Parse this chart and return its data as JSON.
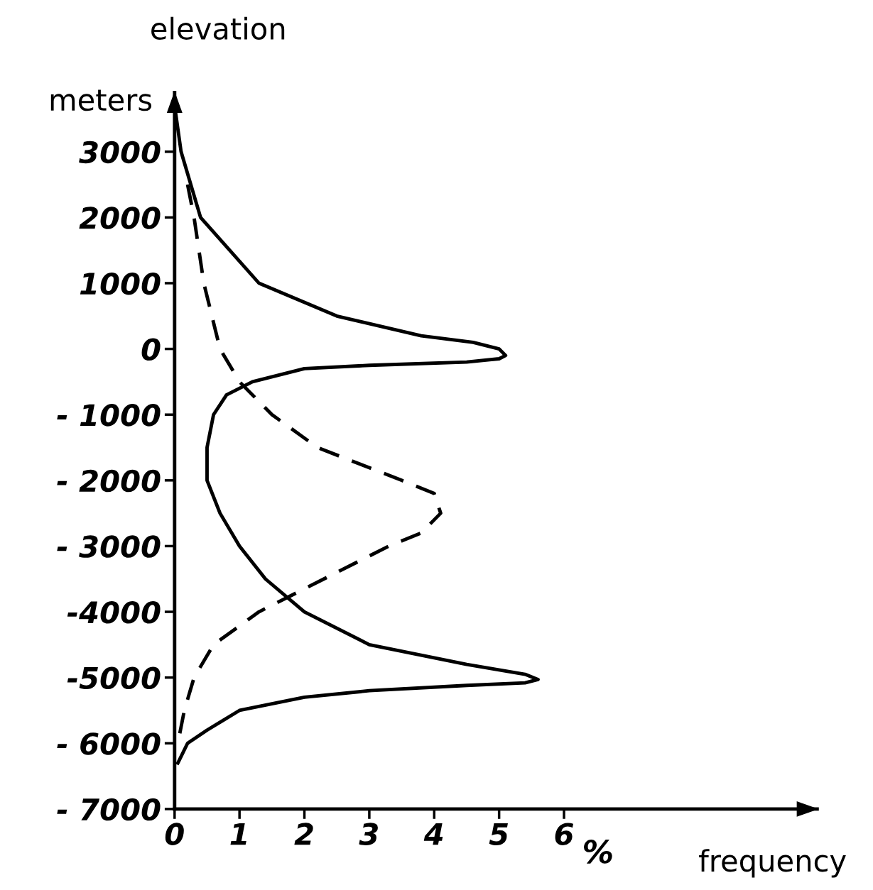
{
  "chart_data": {
    "type": "line",
    "title": "elevation",
    "ylabel": "meters",
    "xlabel": "frequency",
    "annotations": [
      "%"
    ],
    "xlim": [
      0,
      9.9
    ],
    "ylim": [
      -7000,
      3900
    ],
    "xticks": [
      0,
      1,
      2,
      3,
      4,
      5,
      6
    ],
    "yticks": [
      3000,
      2000,
      1000,
      0,
      {
        "value": -1000,
        "label": "- 1000"
      },
      {
        "value": -2000,
        "label": "- 2000"
      },
      {
        "value": -3000,
        "label": "- 3000"
      },
      {
        "value": -4000,
        "label": "-4000"
      },
      {
        "value": -5000,
        "label": "-5000"
      },
      {
        "value": -6000,
        "label": "- 6000"
      },
      {
        "value": -7000,
        "label": "- 7000"
      }
    ],
    "grid": false,
    "legend": false,
    "series": [
      {
        "color": "#000000",
        "line_style": "solid",
        "x": [
          0,
          0.1,
          0.4,
          1.3,
          2.5,
          3.8,
          4.6,
          5.0,
          5.1,
          5.0,
          4.5,
          3.0,
          2.0,
          1.2,
          0.8,
          0.6,
          0.5,
          0.5,
          0.7,
          1.0,
          1.4,
          2.0,
          3.0,
          4.5,
          5.4,
          5.6,
          5.4,
          4.5,
          3.0,
          2.0,
          1.0,
          0.5,
          0.2,
          0.05
        ],
        "values": [
          3700,
          3000,
          2000,
          1000,
          500,
          200,
          100,
          0,
          -100,
          -150,
          -200,
          -250,
          -300,
          -500,
          -700,
          -1000,
          -1500,
          -2000,
          -2500,
          -3000,
          -3500,
          -4000,
          -4500,
          -4800,
          -4950,
          -5030,
          -5080,
          -5120,
          -5200,
          -5300,
          -5500,
          -5800,
          -6000,
          -6300
        ]
      },
      {
        "color": "#000000",
        "line_style": "dashed",
        "x": [
          0.2,
          0.3,
          0.45,
          0.7,
          1.0,
          1.5,
          2.2,
          3.5,
          4.0,
          4.1,
          3.8,
          3.3,
          2.3,
          1.3,
          0.6,
          0.3,
          0.15,
          0.05
        ],
        "values": [
          2500,
          2000,
          1000,
          0,
          -500,
          -1000,
          -1500,
          -2000,
          -2200,
          -2500,
          -2800,
          -3000,
          -3500,
          -4000,
          -4500,
          -5000,
          -5500,
          -6000
        ]
      }
    ]
  }
}
